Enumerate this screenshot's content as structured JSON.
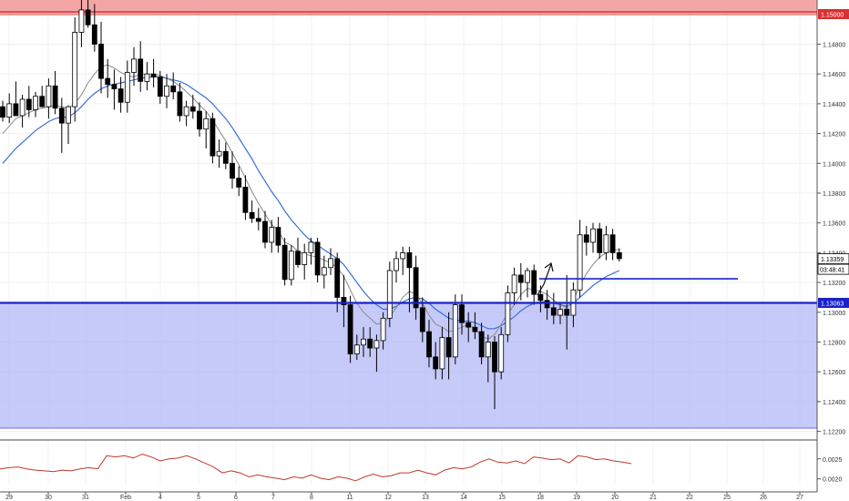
{
  "chart_data": {
    "type": "candlestick",
    "title": "",
    "xlabel": "",
    "ylabel": "",
    "ylim": [
      1.2182,
      1.1502
    ],
    "x_tick_labels": [
      "29",
      "30",
      "31",
      "Feb",
      "4",
      "5",
      "6",
      "7",
      "8",
      "11",
      "12",
      "13",
      "14",
      "15",
      "18",
      "19",
      "20",
      "21",
      "22",
      "25",
      "26",
      "27"
    ],
    "y_tick_labels": [
      "1.14800",
      "1.14600",
      "1.14400",
      "1.14200",
      "1.14000",
      "1.13800",
      "1.13600",
      "1.13400",
      "1.13200",
      "1.13000",
      "1.12800",
      "1.12600",
      "1.12400",
      "1.12200"
    ],
    "price_y_ticks": [
      1.148,
      1.146,
      1.144,
      1.142,
      1.14,
      1.138,
      1.136,
      1.134,
      1.132,
      1.13,
      1.128,
      1.126,
      1.124,
      1.122
    ],
    "resistance_zone": {
      "from": 1.15,
      "to": 1.1515,
      "color": "#f4a6a6",
      "label": "1.15000"
    },
    "support_zone": {
      "from": 1.1218,
      "to": 1.13063,
      "color": "#b3b8f7",
      "label": "1.13063"
    },
    "horizontal_lines": [
      {
        "price": 1.13063,
        "color": "#1a22c8"
      },
      {
        "price": 1.13225,
        "color": "#1a22c8"
      }
    ],
    "current_price": {
      "value": 1.13359,
      "label": "1.13359",
      "countdown": "03:48:41"
    },
    "candles": [
      [
        1.1438,
        1.1442,
        1.1428,
        1.1431
      ],
      [
        1.1431,
        1.1447,
        1.1427,
        1.144
      ],
      [
        1.144,
        1.1455,
        1.1436,
        1.1432
      ],
      [
        1.1432,
        1.1446,
        1.1424,
        1.1443
      ],
      [
        1.1443,
        1.1452,
        1.1431,
        1.1436
      ],
      [
        1.1436,
        1.1448,
        1.1431,
        1.1445
      ],
      [
        1.1445,
        1.1452,
        1.1439,
        1.1438
      ],
      [
        1.1438,
        1.1457,
        1.143,
        1.1452
      ],
      [
        1.1452,
        1.1462,
        1.1433,
        1.1437
      ],
      [
        1.1437,
        1.1444,
        1.1407,
        1.1427
      ],
      [
        1.1427,
        1.1439,
        1.1413,
        1.1438
      ],
      [
        1.1438,
        1.1498,
        1.1428,
        1.1488
      ],
      [
        1.1488,
        1.1513,
        1.1478,
        1.1503
      ],
      [
        1.1503,
        1.1512,
        1.1491,
        1.1493
      ],
      [
        1.1493,
        1.1507,
        1.1475,
        1.148
      ],
      [
        1.148,
        1.1495,
        1.1447,
        1.1457
      ],
      [
        1.1457,
        1.147,
        1.1444,
        1.1453
      ],
      [
        1.1453,
        1.1463,
        1.1436,
        1.145
      ],
      [
        1.145,
        1.1458,
        1.1434,
        1.1441
      ],
      [
        1.1441,
        1.1469,
        1.1434,
        1.1461
      ],
      [
        1.1461,
        1.1478,
        1.1452,
        1.147
      ],
      [
        1.147,
        1.1482,
        1.1448,
        1.1455
      ],
      [
        1.1455,
        1.1468,
        1.1449,
        1.146
      ],
      [
        1.146,
        1.147,
        1.1451,
        1.1458
      ],
      [
        1.1458,
        1.1462,
        1.144,
        1.1445
      ],
      [
        1.1445,
        1.146,
        1.1437,
        1.1452
      ],
      [
        1.1452,
        1.1461,
        1.1443,
        1.1448
      ],
      [
        1.1448,
        1.1454,
        1.1428,
        1.1432
      ],
      [
        1.1432,
        1.1442,
        1.1425,
        1.1438
      ],
      [
        1.1438,
        1.1446,
        1.143,
        1.1435
      ],
      [
        1.1435,
        1.1441,
        1.1418,
        1.1423
      ],
      [
        1.1423,
        1.1435,
        1.141,
        1.143
      ],
      [
        1.143,
        1.1434,
        1.14,
        1.1405
      ],
      [
        1.1405,
        1.1416,
        1.1397,
        1.1408
      ],
      [
        1.1408,
        1.1414,
        1.1396,
        1.14
      ],
      [
        1.14,
        1.1408,
        1.1383,
        1.139
      ],
      [
        1.139,
        1.1398,
        1.1378,
        1.1384
      ],
      [
        1.1384,
        1.1392,
        1.1362,
        1.1367
      ],
      [
        1.1367,
        1.1375,
        1.136,
        1.1363
      ],
      [
        1.1363,
        1.137,
        1.1355,
        1.1361
      ],
      [
        1.1361,
        1.1368,
        1.1343,
        1.1347
      ],
      [
        1.1347,
        1.1362,
        1.134,
        1.1357
      ],
      [
        1.1357,
        1.1364,
        1.134,
        1.1345
      ],
      [
        1.1345,
        1.135,
        1.1318,
        1.1322
      ],
      [
        1.1322,
        1.1345,
        1.1318,
        1.1341
      ],
      [
        1.1341,
        1.135,
        1.133,
        1.1332
      ],
      [
        1.1332,
        1.1346,
        1.1322,
        1.134
      ],
      [
        1.134,
        1.135,
        1.1332,
        1.1347
      ],
      [
        1.1347,
        1.135,
        1.132,
        1.1325
      ],
      [
        1.1325,
        1.1338,
        1.1316,
        1.133
      ],
      [
        1.133,
        1.1343,
        1.1325,
        1.1336
      ],
      [
        1.1336,
        1.134,
        1.13,
        1.131
      ],
      [
        1.131,
        1.1325,
        1.129,
        1.1305
      ],
      [
        1.1305,
        1.1311,
        1.1266,
        1.1272
      ],
      [
        1.1272,
        1.1285,
        1.1268,
        1.1278
      ],
      [
        1.1278,
        1.129,
        1.127,
        1.1282
      ],
      [
        1.1282,
        1.129,
        1.127,
        1.1276
      ],
      [
        1.1276,
        1.1285,
        1.126,
        1.1281
      ],
      [
        1.1281,
        1.13,
        1.1275,
        1.1296
      ],
      [
        1.1296,
        1.1334,
        1.129,
        1.1328
      ],
      [
        1.1328,
        1.1341,
        1.132,
        1.1336
      ],
      [
        1.1336,
        1.1344,
        1.1325,
        1.134
      ],
      [
        1.134,
        1.1344,
        1.13,
        1.133
      ],
      [
        1.133,
        1.1338,
        1.1295,
        1.1303
      ],
      [
        1.1303,
        1.131,
        1.128,
        1.1287
      ],
      [
        1.1287,
        1.1295,
        1.1263,
        1.127
      ],
      [
        1.127,
        1.128,
        1.1255,
        1.1262
      ],
      [
        1.1262,
        1.129,
        1.1255,
        1.1283
      ],
      [
        1.1283,
        1.13,
        1.1255,
        1.127
      ],
      [
        1.127,
        1.1312,
        1.1265,
        1.1305
      ],
      [
        1.1305,
        1.1312,
        1.1285,
        1.1293
      ],
      [
        1.1293,
        1.13,
        1.128,
        1.129
      ],
      [
        1.129,
        1.13,
        1.1282,
        1.1287
      ],
      [
        1.1287,
        1.1293,
        1.1265,
        1.127
      ],
      [
        1.127,
        1.1285,
        1.1253,
        1.128
      ],
      [
        1.128,
        1.1284,
        1.1235,
        1.126
      ],
      [
        1.126,
        1.129,
        1.1255,
        1.1285
      ],
      [
        1.1285,
        1.1318,
        1.128,
        1.1313
      ],
      [
        1.1313,
        1.133,
        1.1305,
        1.1325
      ],
      [
        1.1325,
        1.1333,
        1.1308,
        1.132
      ],
      [
        1.132,
        1.133,
        1.131,
        1.1328
      ],
      [
        1.1328,
        1.1332,
        1.1305,
        1.1312
      ],
      [
        1.1312,
        1.1318,
        1.13,
        1.1308
      ],
      [
        1.1308,
        1.1315,
        1.1295,
        1.1303
      ],
      [
        1.1303,
        1.1313,
        1.1292,
        1.1298
      ],
      [
        1.1298,
        1.1307,
        1.1292,
        1.1302
      ],
      [
        1.1302,
        1.1325,
        1.1275,
        1.1298
      ],
      [
        1.1298,
        1.132,
        1.129,
        1.1315
      ],
      [
        1.1315,
        1.1362,
        1.131,
        1.1352
      ],
      [
        1.1352,
        1.1358,
        1.1338,
        1.1347
      ],
      [
        1.1347,
        1.136,
        1.134,
        1.1356
      ],
      [
        1.1356,
        1.136,
        1.1336,
        1.134
      ],
      [
        1.134,
        1.1358,
        1.1335,
        1.1352
      ],
      [
        1.1352,
        1.1356,
        1.1335,
        1.134
      ],
      [
        1.134,
        1.1343,
        1.1334,
        1.1336
      ]
    ],
    "grey_ma": [
      1.142,
      1.1425,
      1.143,
      1.1432,
      1.1434,
      1.1436,
      1.1437,
      1.1438,
      1.1439,
      1.1438,
      1.1437,
      1.144,
      1.1446,
      1.1454,
      1.146,
      1.1465,
      1.1466,
      1.1464,
      1.1461,
      1.1459,
      1.1458,
      1.146,
      1.146,
      1.146,
      1.1459,
      1.1457,
      1.1455,
      1.1452,
      1.1448,
      1.1444,
      1.1439,
      1.1435,
      1.1429,
      1.1422,
      1.1415,
      1.1407,
      1.1399,
      1.139,
      1.1381,
      1.1373,
      1.1366,
      1.1359,
      1.1355,
      1.1347,
      1.1345,
      1.1341,
      1.1339,
      1.1338,
      1.1337,
      1.1335,
      1.1333,
      1.133,
      1.1324,
      1.1315,
      1.1306,
      1.13,
      1.1296,
      1.1292,
      1.1293,
      1.1297,
      1.1303,
      1.131,
      1.1314,
      1.1312,
      1.1306,
      1.1298,
      1.1292,
      1.129,
      1.1287,
      1.1288,
      1.129,
      1.1292,
      1.1289,
      1.1284,
      1.1282,
      1.1285,
      1.1292,
      1.1299,
      1.1305,
      1.1312,
      1.1316,
      1.1315,
      1.1314,
      1.1312,
      1.1308,
      1.1305,
      1.1303,
      1.1308,
      1.1318,
      1.1326,
      1.1332,
      1.1337,
      1.134,
      1.1342,
      1.1342
    ],
    "blue_ma": [
      1.14,
      1.1405,
      1.141,
      1.1414,
      1.1418,
      1.1422,
      1.1425,
      1.1428,
      1.143,
      1.1431,
      1.1431,
      1.1434,
      1.1438,
      1.1443,
      1.1447,
      1.145,
      1.1452,
      1.1453,
      1.1454,
      1.1455,
      1.1456,
      1.1457,
      1.1458,
      1.1458,
      1.1458,
      1.1457,
      1.1456,
      1.1455,
      1.1453,
      1.145,
      1.1447,
      1.1444,
      1.144,
      1.1435,
      1.143,
      1.1424,
      1.1417,
      1.141,
      1.1403,
      1.1395,
      1.1388,
      1.1381,
      1.1375,
      1.1368,
      1.1362,
      1.1357,
      1.1352,
      1.1348,
      1.1345,
      1.1342,
      1.1339,
      1.1336,
      1.1332,
      1.1326,
      1.132,
      1.1314,
      1.1309,
      1.1305,
      1.1302,
      1.1302,
      1.1304,
      1.1307,
      1.1309,
      1.131,
      1.1309,
      1.1306,
      1.1302,
      1.1299,
      1.1296,
      1.1295,
      1.1294,
      1.1294,
      1.1293,
      1.1291,
      1.1289,
      1.1289,
      1.1291,
      1.1294,
      1.1297,
      1.1301,
      1.1304,
      1.1306,
      1.1307,
      1.1307,
      1.1306,
      1.1305,
      1.1304,
      1.1306,
      1.131,
      1.1314,
      1.1318,
      1.1321,
      1.1324,
      1.1326,
      1.1328
    ],
    "oscillator": {
      "type": "line",
      "color": "#c0392b",
      "y_tick_labels": [
        "0.0025",
        "0.0020"
      ],
      "y_ticks": [
        0.0025,
        0.002
      ],
      "ylim": [
        0.00188,
        0.00295
      ],
      "values": [
        0.00225,
        0.00228,
        0.0023,
        0.00225,
        0.00222,
        0.0022,
        0.00218,
        0.00222,
        0.0022,
        0.00225,
        0.00228,
        0.00225,
        0.00258,
        0.00255,
        0.00258,
        0.00252,
        0.00262,
        0.00255,
        0.00245,
        0.0025,
        0.00252,
        0.00258,
        0.0025,
        0.0024,
        0.0023,
        0.00215,
        0.0022,
        0.00215,
        0.00205,
        0.0021,
        0.00205,
        0.00202,
        0.00198,
        0.00205,
        0.00202,
        0.0021,
        0.00202,
        0.00198,
        0.00205,
        0.00202,
        0.00195,
        0.00205,
        0.00212,
        0.00205,
        0.00208,
        0.00215,
        0.00215,
        0.00222,
        0.00215,
        0.0021,
        0.00222,
        0.00228,
        0.00225,
        0.0023,
        0.00242,
        0.0025,
        0.00242,
        0.0024,
        0.00245,
        0.00238,
        0.00255,
        0.00252,
        0.00248,
        0.0025,
        0.0024,
        0.00258,
        0.00255,
        0.00248,
        0.0025,
        0.00245,
        0.00242,
        0.00238
      ]
    }
  }
}
